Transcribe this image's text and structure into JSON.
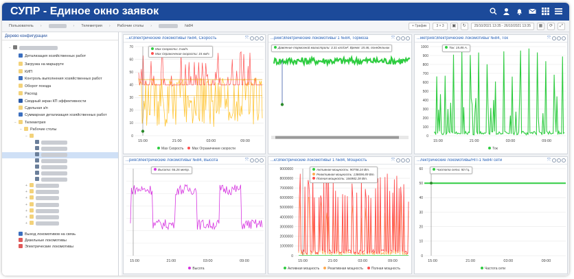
{
  "header": {
    "title": "СУПР - Единое окно заявок"
  },
  "toolbar": {
    "crumbs": [
      "Пользователь",
      "Телеметрия",
      "Рабочие столы",
      "№84"
    ],
    "graph_button": "+ График",
    "layout_button": "3 × 3",
    "date_range": "25/10/2021 13:35 - 26/10/2021 13:35"
  },
  "sidebar": {
    "title": "Дерево конфигурации",
    "items": [
      {
        "label": "Детализация хозяйственных работ"
      },
      {
        "label": "Загрузка на маршруте"
      },
      {
        "label": "КИП"
      },
      {
        "label": "Контроль выполнения хозяйственных работ"
      },
      {
        "label": "Оборот поезда"
      },
      {
        "label": "Расход"
      },
      {
        "label": "Сводный экран КП эффективности"
      },
      {
        "label": "Сдельная з/п"
      },
      {
        "label": "Суммарная детализация хозяйственных работ"
      },
      {
        "label": "Телеметрия"
      },
      {
        "label": "Рабочие столы"
      },
      {
        "label": "Выход локомотивов на связь"
      },
      {
        "label": "Дизельные локомотивы"
      },
      {
        "label": "Электрические локомотивы"
      }
    ]
  },
  "colors": {
    "header": "#1c4a9a",
    "green": "#2ecc40",
    "red": "#ff4d4d",
    "yellow": "#ffc533",
    "magenta": "#d633e0",
    "orange": "#ffa94d"
  },
  "panels": [
    {
      "title": "...к/Электрические локомотивы/      №84, Скорость",
      "tooltip": [
        "Max Скорости: 3 км/ч.",
        "Max Ограничение скорости: 15 км/ч."
      ],
      "legend": [
        "Max Скорость",
        "Max Ограничение скорости"
      ],
      "yticks": [
        "0",
        "10",
        "20",
        "30",
        "40",
        "50",
        "60",
        "70"
      ],
      "xticks": [
        "15:00",
        "21:00",
        "03:00",
        "09:00"
      ]
    },
    {
      "title": "...рии/Электрические локомотивы/      1 №84, Тормоза",
      "tooltip": [
        "Давление тормозной магистрали: 3.31 кгс/см². Время: 15:46, понедельник"
      ],
      "legend": [],
      "yticks": [],
      "xticks": []
    },
    {
      "title": "...метрия/Электрические локомотивы/      №84, Ток",
      "tooltip": [
        "Ток: 15.85 А."
      ],
      "legend": [
        "Ток"
      ],
      "yticks": [
        "0",
        "100",
        "200",
        "300",
        "400",
        "500",
        "600",
        "700",
        "800",
        "900",
        "1000"
      ],
      "xticks": [
        "15:00",
        "21:00",
        "03:00",
        "09:00"
      ]
    },
    {
      "title": "...рия/Электрические локомотивы/      №84, Высота",
      "tooltip": [
        "Высота: 56.26 метр."
      ],
      "legend": [
        "Высота"
      ],
      "yticks": [],
      "xticks": [
        "15:00",
        "21:00",
        "03:00",
        "09:00"
      ]
    },
    {
      "title": "...к/Электрические локомотивы/      1 №84, Мощность",
      "tooltip": [
        "Активная мощность: 90758.24 Вт.",
        "Реактивная мощность: 138696.89 Вт.",
        "Полная мощность: 166982.28 Вт."
      ],
      "legend": [
        "Активная мощность",
        "Реактивная мощность",
        "Полная мощность"
      ],
      "yticks": [
        "0",
        "1000000",
        "2000000",
        "3000000",
        "4000000",
        "5000000",
        "6000000",
        "7000000",
        "8000000",
        "9000000"
      ],
      "xticks": [
        "15:00",
        "21:00",
        "03:00",
        "09:00"
      ]
    },
    {
      "title": "...лектрические локомотивы/НП-1 №84/      сети",
      "tooltip": [
        "Частота сети: 50 Гц."
      ],
      "legend": [
        "Частота сети"
      ],
      "yticks": [
        "0",
        "10",
        "20",
        "30",
        "40",
        "50",
        "60"
      ],
      "xticks": [
        "15:00",
        "21:00",
        "03:00",
        "09:00"
      ]
    }
  ]
}
